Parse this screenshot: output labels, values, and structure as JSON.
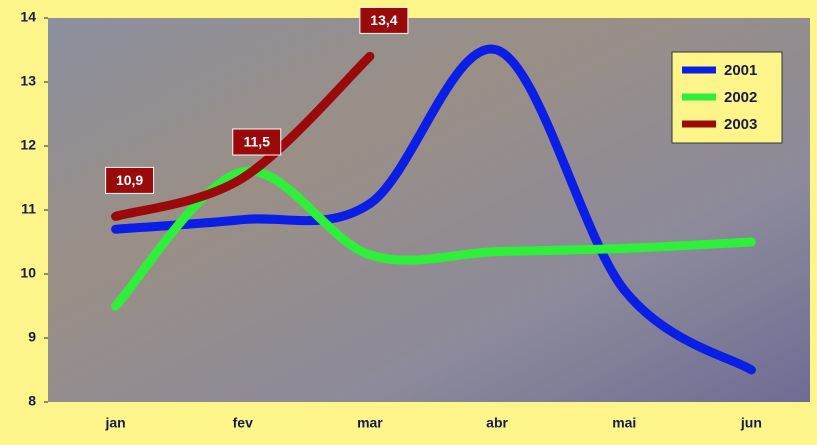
{
  "chart_data": {
    "type": "line",
    "categories": [
      "jan",
      "fev",
      "mar",
      "abr",
      "mai",
      "jun"
    ],
    "series": [
      {
        "name": "2001",
        "color": "#0a1ee6",
        "values": [
          10.7,
          10.85,
          11.1,
          13.5,
          9.75,
          8.5
        ]
      },
      {
        "name": "2002",
        "color": "#2ef03a",
        "values": [
          9.5,
          11.6,
          10.3,
          10.35,
          10.4,
          10.5
        ]
      },
      {
        "name": "2003",
        "color": "#9a0a0a",
        "values": [
          10.9,
          11.5,
          13.4,
          null,
          null,
          null
        ],
        "value_labels": [
          "10,9",
          "11,5",
          "13,4",
          null,
          null,
          null
        ]
      }
    ],
    "ylim": [
      8,
      14
    ],
    "yticks": [
      8,
      9,
      10,
      11,
      12,
      13,
      14
    ],
    "legend": "top-right"
  }
}
